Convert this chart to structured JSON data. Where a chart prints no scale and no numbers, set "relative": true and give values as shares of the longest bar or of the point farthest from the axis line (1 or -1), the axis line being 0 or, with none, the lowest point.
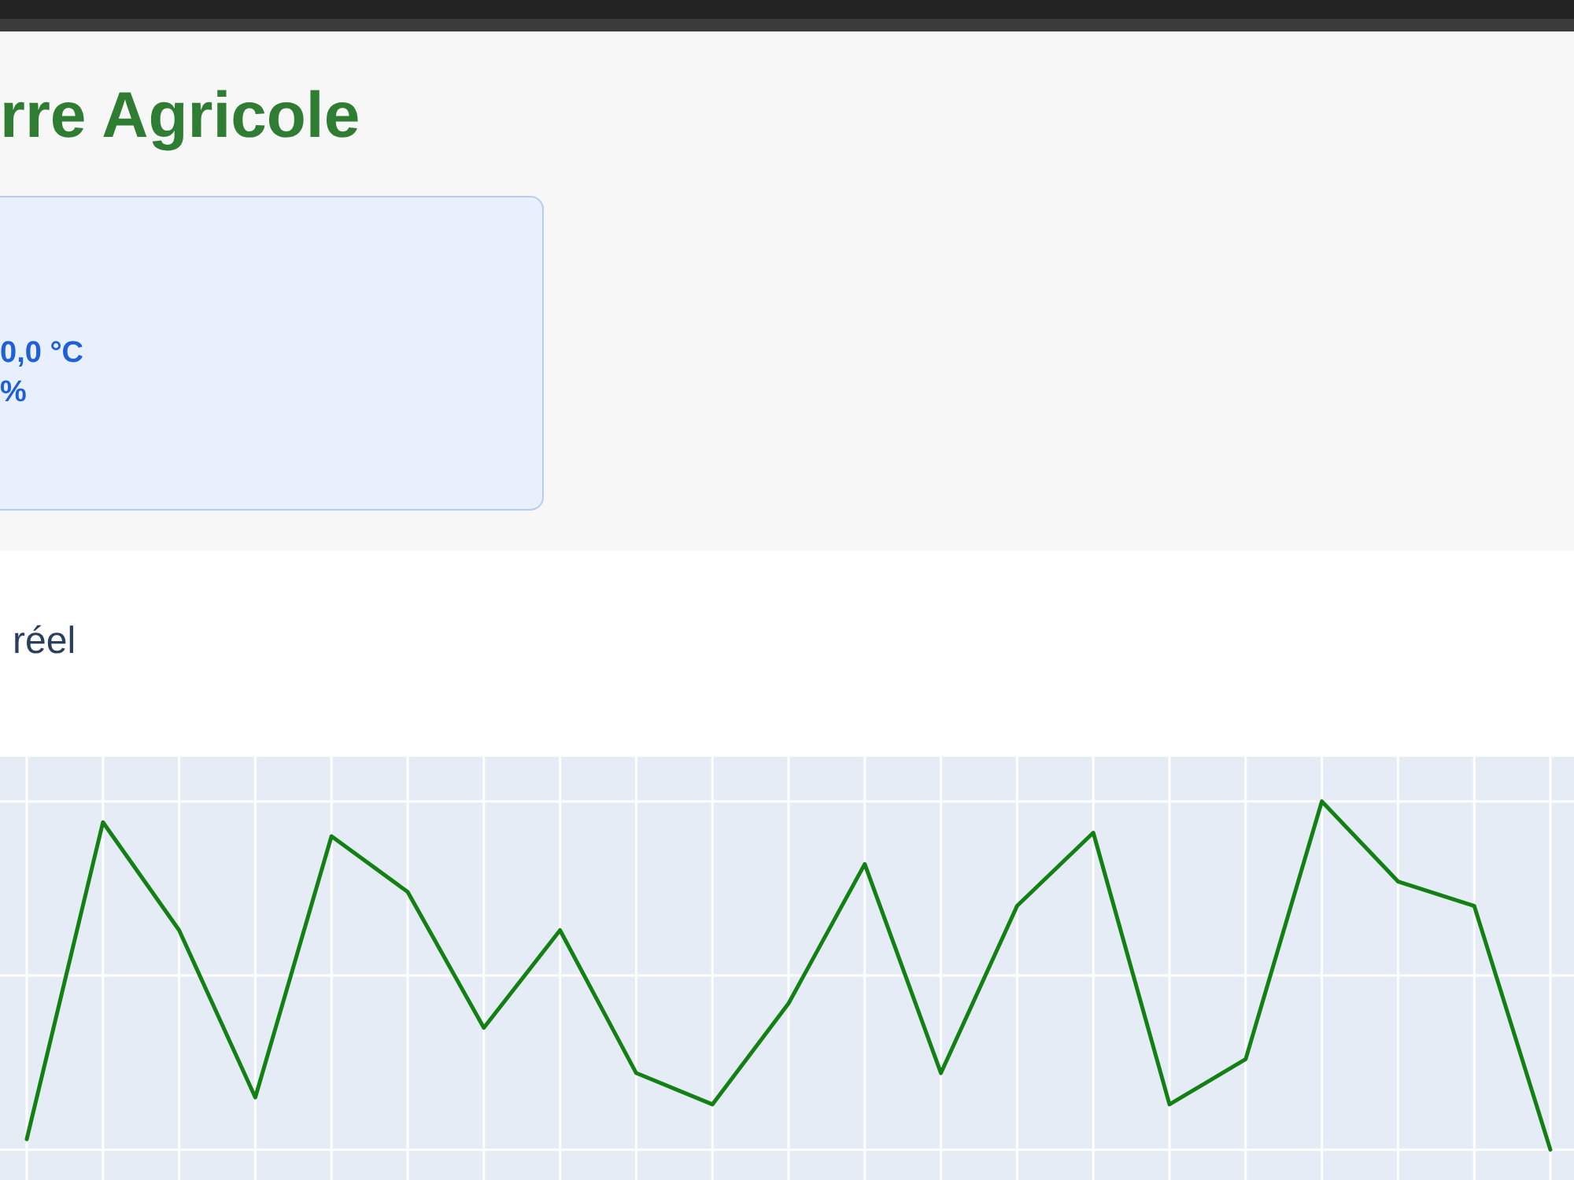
{
  "chart_data": {
    "type": "line",
    "title": "rre Agricole",
    "subtitle": "réel",
    "annotations": [
      "0,0 °C",
      "%"
    ],
    "relative": true,
    "grid": true,
    "categories": [
      null,
      null,
      null,
      null,
      null,
      null,
      null,
      null,
      null,
      null,
      null,
      null,
      null,
      null,
      null,
      null,
      null,
      null,
      null,
      null,
      null
    ],
    "series": [
      {
        "color": "#138013",
        "values": [
          0.03,
          0.94,
          0.63,
          0.15,
          0.9,
          0.74,
          0.35,
          0.63,
          0.22,
          0.13,
          0.42,
          0.82,
          0.22,
          0.7,
          0.91,
          0.13,
          0.26,
          1,
          0.77,
          0.7,
          0
        ]
      }
    ]
  }
}
